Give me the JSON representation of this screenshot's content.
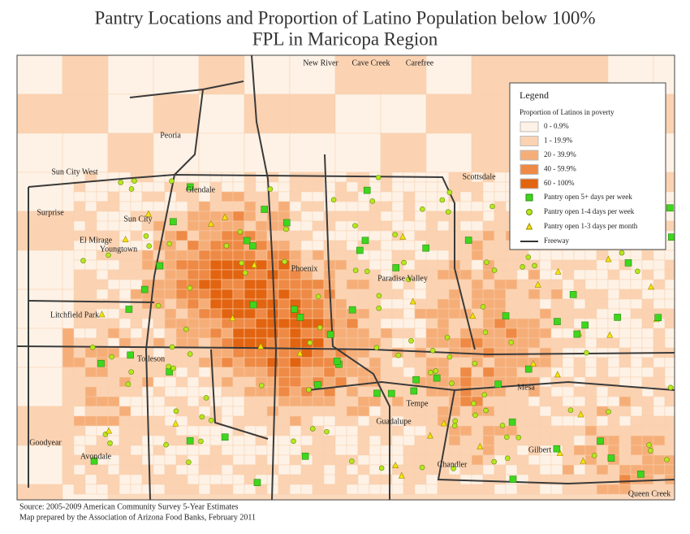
{
  "header": {
    "title": [
      "Pantry Locations and Proportion of Latino Population below 100%",
      "FPL in Maricopa Region"
    ]
  },
  "map": {
    "places": [
      "New River",
      "Cave Creek",
      "Carefree",
      "Peoria",
      "Sun City West",
      "Glendale",
      "Surprise",
      "Sun City",
      "El Mirage",
      "Youngtown",
      "Scottsdale",
      "Phoenix",
      "Paradise Valley",
      "Litchfield Park",
      "Tolleson",
      "Mesa",
      "Tempe",
      "Guadalupe",
      "Goodyear",
      "Avondale",
      "Gilbert",
      "Chandler",
      "Queen Creek"
    ]
  },
  "legend": {
    "title": "Legend",
    "subtitle": "Proportion of Latinos in poverty",
    "classes": [
      {
        "label": "0 - 0.9%",
        "color": "#fef2e6"
      },
      {
        "label": "1 - 19.9%",
        "color": "#fbd3b2"
      },
      {
        "label": "20 - 39.9%",
        "color": "#f6ae79"
      },
      {
        "label": "40 - 59.9%",
        "color": "#ee8a45"
      },
      {
        "label": "60 - 100%",
        "color": "#e26410"
      }
    ],
    "symbols": [
      {
        "label": "Pantry open 5+ days per week"
      },
      {
        "label": "Pantry open 1-4 days per week"
      },
      {
        "label": "Pantry open 1-3 days per month"
      },
      {
        "label": "Freeway"
      }
    ]
  },
  "footer": {
    "source": [
      "Source: 2005-2009 American Community Survey 5-Year Estimates",
      "Map prepared by the Association of Arizona Food Banks, February 2011"
    ]
  }
}
